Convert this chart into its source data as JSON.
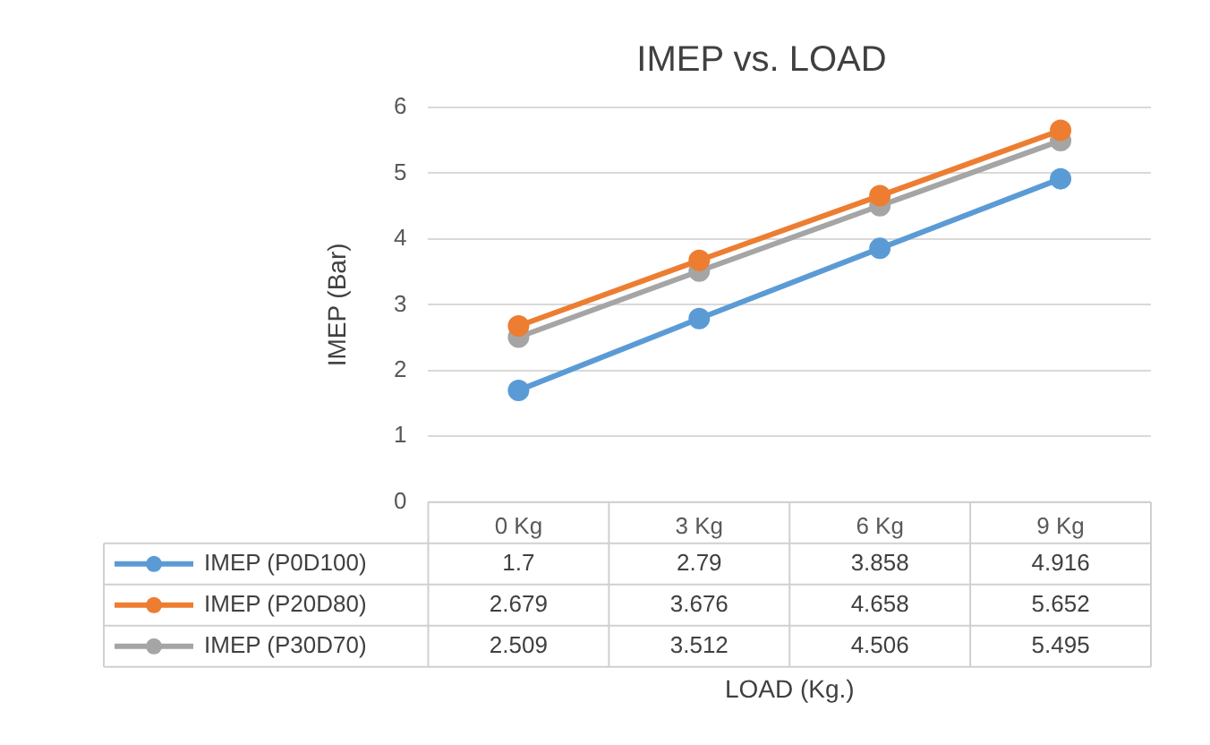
{
  "chart_data": {
    "type": "line",
    "title": "IMEP vs. LOAD",
    "annotations": [
      "LOAD (Kg.)"
    ],
    "ylabel": "IMEP (Bar)",
    "categories": [
      "0 Kg",
      "3 Kg",
      "6 Kg",
      "9 Kg"
    ],
    "series": [
      {
        "name": "IMEP (P0D100)",
        "color": "#5b9bd5",
        "values": [
          1.7,
          2.79,
          3.858,
          4.916
        ]
      },
      {
        "name": "IMEP (P20D80)",
        "color": "#ed7d31",
        "values": [
          2.679,
          3.676,
          4.658,
          5.652
        ]
      },
      {
        "name": "IMEP (P30D70)",
        "color": "#a5a5a5",
        "values": [
          2.509,
          3.512,
          4.506,
          5.495
        ]
      }
    ],
    "ylim": [
      0,
      6
    ],
    "yticks": [
      0,
      1,
      2,
      3,
      4,
      5,
      6
    ],
    "grid": "y",
    "marker": "circle",
    "line_style": "solid",
    "legend": "bottom",
    "data_labels": true
  }
}
